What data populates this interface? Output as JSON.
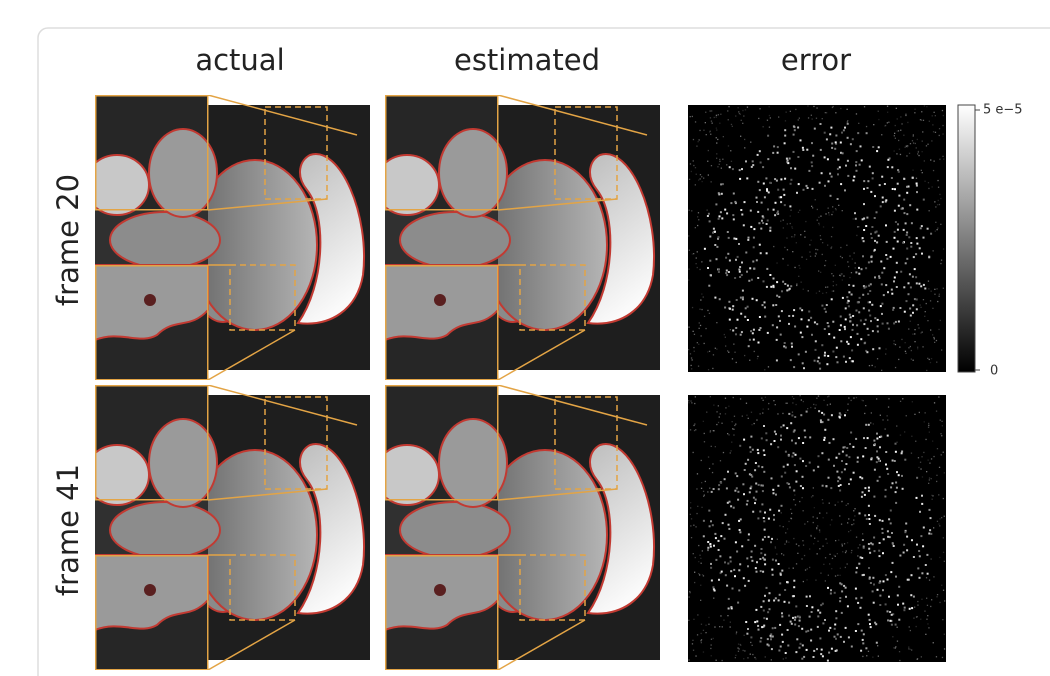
{
  "columns": [
    "actual",
    "estimated",
    "error"
  ],
  "rows": [
    "frame 20",
    "frame 41"
  ],
  "colorbar": {
    "max": "5 e−5",
    "min": "0"
  }
}
